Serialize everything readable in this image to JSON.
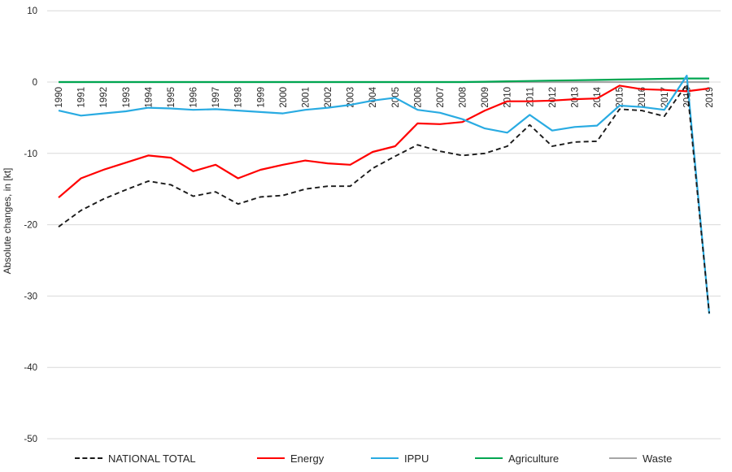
{
  "chart_data": {
    "type": "line",
    "title": "",
    "xlabel": "",
    "ylabel": "Absolute changes, in [kt]",
    "ylim": [
      -50,
      10
    ],
    "y_ticks": [
      10,
      0,
      -10,
      -20,
      -30,
      -40,
      -50
    ],
    "grid": "horizontal",
    "legend_position": "bottom",
    "x": [
      "1990",
      "1991",
      "1992",
      "1993",
      "1994",
      "1995",
      "1996",
      "1997",
      "1998",
      "1999",
      "2000",
      "2001",
      "2002",
      "2003",
      "2004",
      "2005",
      "2006",
      "2007",
      "2008",
      "2009",
      "2010",
      "2011",
      "2012",
      "2013",
      "2014",
      "2015",
      "2016",
      "2017",
      "2018",
      "2019"
    ],
    "series": [
      {
        "name": "NATIONAL TOTAL",
        "color": "#1a1a1a",
        "style": "dashed",
        "values": [
          -20.3,
          -18.0,
          -16.4,
          -15.1,
          -13.9,
          -14.4,
          -16.0,
          -15.4,
          -17.1,
          -16.1,
          -15.9,
          -15.0,
          -14.6,
          -14.6,
          -12.1,
          -10.4,
          -8.8,
          -9.7,
          -10.3,
          -10.0,
          -9.0,
          -6.0,
          -9.0,
          -8.4,
          -8.3,
          -3.8,
          -4.0,
          -4.8,
          -0.3,
          -32.4
        ]
      },
      {
        "name": "Energy",
        "color": "#ff0000",
        "style": "solid",
        "values": [
          -16.2,
          -13.5,
          -12.3,
          -11.3,
          -10.3,
          -10.6,
          -12.5,
          -11.6,
          -13.5,
          -12.3,
          -11.6,
          -11.0,
          -11.4,
          -11.6,
          -9.8,
          -9.0,
          -5.8,
          -5.9,
          -5.6,
          -4.0,
          -2.7,
          -2.7,
          -2.6,
          -2.4,
          -2.3,
          -0.5,
          -1.0,
          -1.1,
          -1.3,
          -0.9
        ]
      },
      {
        "name": "IPPU",
        "color": "#29abe2",
        "style": "solid",
        "values": [
          -4.0,
          -4.7,
          -4.4,
          -4.1,
          -3.6,
          -3.7,
          -3.9,
          -3.8,
          -4.0,
          -4.2,
          -4.4,
          -3.9,
          -3.6,
          -3.2,
          -2.6,
          -2.2,
          -3.9,
          -4.3,
          -5.2,
          -6.5,
          -7.1,
          -4.6,
          -6.8,
          -6.3,
          -6.1,
          -3.3,
          -3.5,
          -3.9,
          0.9,
          -32.5
        ]
      },
      {
        "name": "Agriculture",
        "color": "#00a651",
        "style": "solid",
        "values": [
          0,
          0,
          0,
          0,
          0,
          0,
          0,
          0,
          0,
          0,
          0,
          0,
          0,
          0,
          0,
          0,
          0,
          0,
          0,
          0.05,
          0.1,
          0.15,
          0.2,
          0.25,
          0.3,
          0.35,
          0.4,
          0.45,
          0.5,
          0.5
        ]
      },
      {
        "name": "Waste",
        "color": "#a6a6a6",
        "style": "solid",
        "values": [
          0,
          0,
          0,
          0,
          0,
          0,
          0,
          0,
          0,
          0,
          0,
          0,
          0,
          0,
          0,
          0,
          0,
          0,
          0,
          0,
          0,
          0,
          0,
          0,
          0,
          0,
          0,
          0,
          0,
          0
        ]
      }
    ],
    "colors": {
      "gridline": "#d9d9d9",
      "tick_text": "#262626",
      "background": "#ffffff"
    }
  }
}
